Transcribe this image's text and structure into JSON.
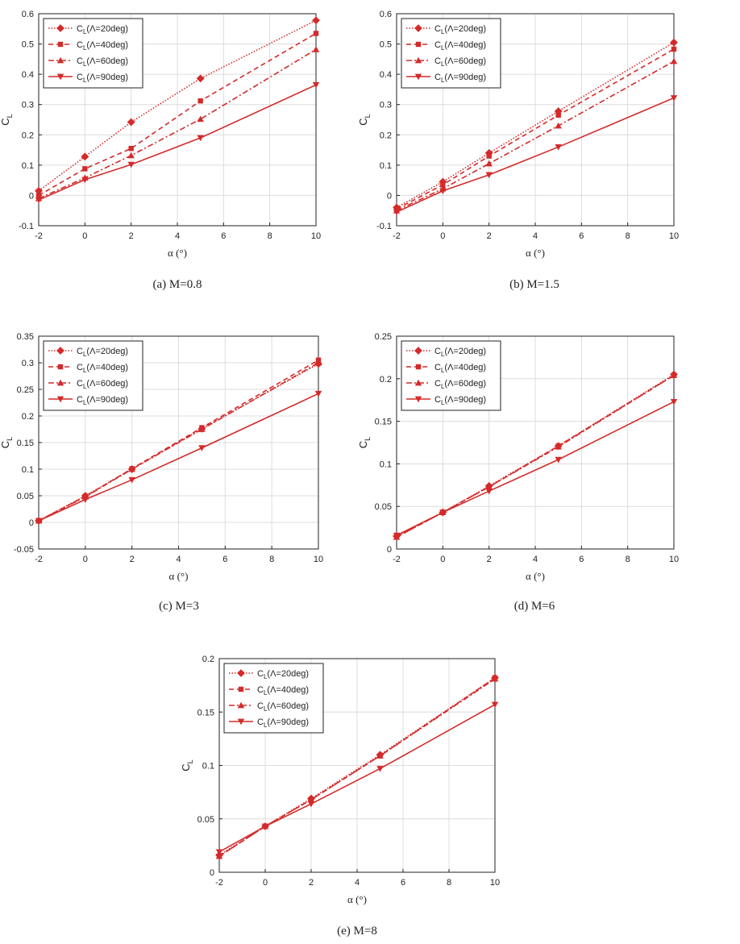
{
  "colors": {
    "series": "#d42a2a",
    "grid": "#dcdcdc",
    "axis": "#222222"
  },
  "chart_data": [
    {
      "type": "line",
      "panel": "a",
      "caption": "(a) M=0.8",
      "xlabel": "α (°)",
      "ylabel": "C",
      "ylabel_sub": "L",
      "x": [
        -2,
        0,
        2,
        5,
        10
      ],
      "xlim": [
        -2,
        10
      ],
      "ylim": [
        -0.1,
        0.6
      ],
      "xticks": [
        -2,
        0,
        2,
        4,
        6,
        8,
        10
      ],
      "xtick_labels": [
        "-2",
        "0",
        "2",
        "4",
        "6",
        "8",
        "10"
      ],
      "yticks": [
        -0.1,
        0,
        0.1,
        0.2,
        0.3,
        0.4,
        0.5,
        0.6
      ],
      "ytick_labels": [
        "-0.1",
        "0",
        "0.1",
        "0.2",
        "0.3",
        "0.4",
        "0.5",
        "0.6"
      ],
      "legend_position": "top-left",
      "series": [
        {
          "name": "C",
          "sub": "L",
          "suffix": "(Λ=20deg)",
          "marker": "diamond",
          "dash": "1.5,2",
          "values": [
            0.015,
            0.128,
            0.242,
            0.386,
            0.578
          ]
        },
        {
          "name": "C",
          "sub": "L",
          "suffix": "(Λ=40deg)",
          "marker": "square",
          "dash": "6,4",
          "values": [
            0.0,
            0.088,
            0.155,
            0.312,
            0.535
          ]
        },
        {
          "name": "C",
          "sub": "L",
          "suffix": "(Λ=60deg)",
          "marker": "triangle-up",
          "dash": "7,3,2,3",
          "values": [
            -0.01,
            0.058,
            0.132,
            0.252,
            0.482
          ]
        },
        {
          "name": "C",
          "sub": "L",
          "suffix": "(Λ=90deg)",
          "marker": "triangle-down",
          "dash": "",
          "values": [
            -0.015,
            0.052,
            0.102,
            0.19,
            0.365
          ]
        }
      ]
    },
    {
      "type": "line",
      "panel": "b",
      "caption": "(b) M=1.5",
      "xlabel": "α (°)",
      "ylabel": "C",
      "ylabel_sub": "L",
      "x": [
        -2,
        0,
        2,
        5,
        10
      ],
      "xlim": [
        -2,
        10
      ],
      "ylim": [
        -0.1,
        0.6
      ],
      "xticks": [
        -2,
        0,
        2,
        4,
        6,
        8,
        10
      ],
      "xtick_labels": [
        "-2",
        "0",
        "2",
        "4",
        "6",
        "8",
        "10"
      ],
      "yticks": [
        -0.1,
        0,
        0.1,
        0.2,
        0.3,
        0.4,
        0.5,
        0.6
      ],
      "ytick_labels": [
        "-0.1",
        "0",
        "0.1",
        "0.2",
        "0.3",
        "0.4",
        "0.5",
        "0.6"
      ],
      "legend_position": "top-left",
      "series": [
        {
          "name": "C",
          "sub": "L",
          "suffix": "(Λ=20deg)",
          "marker": "diamond",
          "dash": "1.5,2",
          "values": [
            -0.04,
            0.045,
            0.14,
            0.278,
            0.505
          ]
        },
        {
          "name": "C",
          "sub": "L",
          "suffix": "(Λ=40deg)",
          "marker": "square",
          "dash": "6,4",
          "values": [
            -0.045,
            0.035,
            0.13,
            0.265,
            0.483
          ]
        },
        {
          "name": "C",
          "sub": "L",
          "suffix": "(Λ=60deg)",
          "marker": "triangle-up",
          "dash": "7,3,2,3",
          "values": [
            -0.05,
            0.022,
            0.105,
            0.23,
            0.443
          ]
        },
        {
          "name": "C",
          "sub": "L",
          "suffix": "(Λ=90deg)",
          "marker": "triangle-down",
          "dash": "",
          "values": [
            -0.055,
            0.015,
            0.068,
            0.16,
            0.322
          ]
        }
      ]
    },
    {
      "type": "line",
      "panel": "c",
      "caption": "(c) M=3",
      "xlabel": "α (°)",
      "ylabel": "C",
      "ylabel_sub": "L",
      "x": [
        -2,
        0,
        2,
        5,
        10
      ],
      "xlim": [
        -2,
        10
      ],
      "ylim": [
        -0.05,
        0.35
      ],
      "xticks": [
        -2,
        0,
        2,
        4,
        6,
        8,
        10
      ],
      "xtick_labels": [
        "-2",
        "0",
        "2",
        "4",
        "6",
        "8",
        "10"
      ],
      "yticks": [
        -0.05,
        0,
        0.05,
        0.1,
        0.15,
        0.2,
        0.25,
        0.3,
        0.35
      ],
      "ytick_labels": [
        "-0.05",
        "0",
        "0.05",
        "0.1",
        "0.15",
        "0.2",
        "0.25",
        "0.3",
        "0.35"
      ],
      "legend_position": "top-left",
      "series": [
        {
          "name": "C",
          "sub": "L",
          "suffix": "(Λ=20deg)",
          "marker": "diamond",
          "dash": "1.5,2",
          "values": [
            0.003,
            0.05,
            0.1,
            0.176,
            0.298
          ]
        },
        {
          "name": "C",
          "sub": "L",
          "suffix": "(Λ=40deg)",
          "marker": "square",
          "dash": "6,4",
          "values": [
            0.003,
            0.049,
            0.101,
            0.178,
            0.305
          ]
        },
        {
          "name": "C",
          "sub": "L",
          "suffix": "(Λ=60deg)",
          "marker": "triangle-up",
          "dash": "7,3,2,3",
          "values": [
            0.003,
            0.048,
            0.1,
            0.175,
            0.3
          ]
        },
        {
          "name": "C",
          "sub": "L",
          "suffix": "(Λ=90deg)",
          "marker": "triangle-down",
          "dash": "",
          "values": [
            0.003,
            0.043,
            0.08,
            0.14,
            0.242
          ]
        }
      ]
    },
    {
      "type": "line",
      "panel": "d",
      "caption": "(d) M=6",
      "xlabel": "α (°)",
      "ylabel": "C",
      "ylabel_sub": "L",
      "x": [
        -2,
        0,
        2,
        5,
        10
      ],
      "xlim": [
        -2,
        10
      ],
      "ylim": [
        0,
        0.25
      ],
      "xticks": [
        -2,
        0,
        2,
        4,
        6,
        8,
        10
      ],
      "xtick_labels": [
        "-2",
        "0",
        "2",
        "4",
        "6",
        "8",
        "10"
      ],
      "yticks": [
        0,
        0.05,
        0.1,
        0.15,
        0.2,
        0.25
      ],
      "ytick_labels": [
        "0",
        "0.05",
        "0.1",
        "0.15",
        "0.2",
        "0.25"
      ],
      "legend_position": "top-left",
      "series": [
        {
          "name": "C",
          "sub": "L",
          "suffix": "(Λ=20deg)",
          "marker": "diamond",
          "dash": "1.5,2",
          "values": [
            0.015,
            0.043,
            0.074,
            0.121,
            0.205
          ]
        },
        {
          "name": "C",
          "sub": "L",
          "suffix": "(Λ=40deg)",
          "marker": "square",
          "dash": "6,4",
          "values": [
            0.014,
            0.043,
            0.073,
            0.121,
            0.204
          ]
        },
        {
          "name": "C",
          "sub": "L",
          "suffix": "(Λ=60deg)",
          "marker": "triangle-up",
          "dash": "7,3,2,3",
          "values": [
            0.014,
            0.043,
            0.073,
            0.12,
            0.204
          ]
        },
        {
          "name": "C",
          "sub": "L",
          "suffix": "(Λ=90deg)",
          "marker": "triangle-down",
          "dash": "",
          "values": [
            0.016,
            0.043,
            0.068,
            0.105,
            0.173
          ]
        }
      ]
    },
    {
      "type": "line",
      "panel": "e",
      "caption": "(e) M=8",
      "xlabel": "α (°)",
      "ylabel": "C",
      "ylabel_sub": "L",
      "x": [
        -2,
        0,
        2,
        5,
        10
      ],
      "xlim": [
        -2,
        10
      ],
      "ylim": [
        0,
        0.2
      ],
      "xticks": [
        -2,
        0,
        2,
        4,
        6,
        8,
        10
      ],
      "xtick_labels": [
        "-2",
        "0",
        "2",
        "4",
        "6",
        "8",
        "10"
      ],
      "yticks": [
        0,
        0.05,
        0.1,
        0.15,
        0.2
      ],
      "ytick_labels": [
        "0",
        "0.05",
        "0.1",
        "0.15",
        "0.2"
      ],
      "legend_position": "top-left",
      "series": [
        {
          "name": "C",
          "sub": "L",
          "suffix": "(Λ=20deg)",
          "marker": "diamond",
          "dash": "1.5,2",
          "values": [
            0.016,
            0.043,
            0.069,
            0.11,
            0.182
          ]
        },
        {
          "name": "C",
          "sub": "L",
          "suffix": "(Λ=40deg)",
          "marker": "square",
          "dash": "6,4",
          "values": [
            0.015,
            0.043,
            0.068,
            0.109,
            0.182
          ]
        },
        {
          "name": "C",
          "sub": "L",
          "suffix": "(Λ=60deg)",
          "marker": "triangle-up",
          "dash": "7,3,2,3",
          "values": [
            0.015,
            0.043,
            0.068,
            0.109,
            0.181
          ]
        },
        {
          "name": "C",
          "sub": "L",
          "suffix": "(Λ=90deg)",
          "marker": "triangle-down",
          "dash": "",
          "values": [
            0.019,
            0.043,
            0.064,
            0.097,
            0.157
          ]
        }
      ]
    }
  ]
}
